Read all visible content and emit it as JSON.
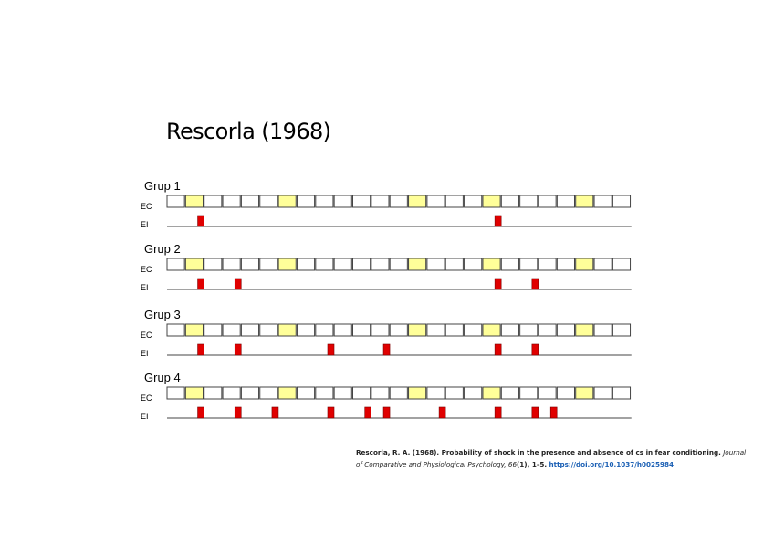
{
  "title": "Rescorla (1968)",
  "diagram": {
    "row_labels": {
      "cs": "EC",
      "us": "EI"
    },
    "trial_count": 25,
    "cs_trials": [
      1,
      6,
      13,
      17,
      22
    ],
    "colors": {
      "cs_fill": "#ffff99",
      "empty_fill": "#ffffff",
      "border": "#444444",
      "us_fill": "#e00000"
    },
    "groups": [
      {
        "label": "Grup 1",
        "us_trials": [
          1,
          17
        ]
      },
      {
        "label": "Grup 2",
        "us_trials": [
          1,
          3,
          17,
          19
        ]
      },
      {
        "label": "Grup 3",
        "us_trials": [
          1,
          3,
          8,
          11,
          17,
          19
        ]
      },
      {
        "label": "Grup 4",
        "us_trials": [
          1,
          3,
          5,
          8,
          10,
          11,
          14,
          17,
          19,
          20
        ]
      }
    ]
  },
  "citation": {
    "main": "Rescorla, R. A. (1968). Probability of shock in the presence and absence of cs in fear conditioning.",
    "journal_line1": "Journal",
    "journal_line2": "of Comparative and Physiological Psychology, 66",
    "issue_pages": "(1), 1–5.",
    "doi": "https://doi.org/10.1037/h0025984"
  }
}
